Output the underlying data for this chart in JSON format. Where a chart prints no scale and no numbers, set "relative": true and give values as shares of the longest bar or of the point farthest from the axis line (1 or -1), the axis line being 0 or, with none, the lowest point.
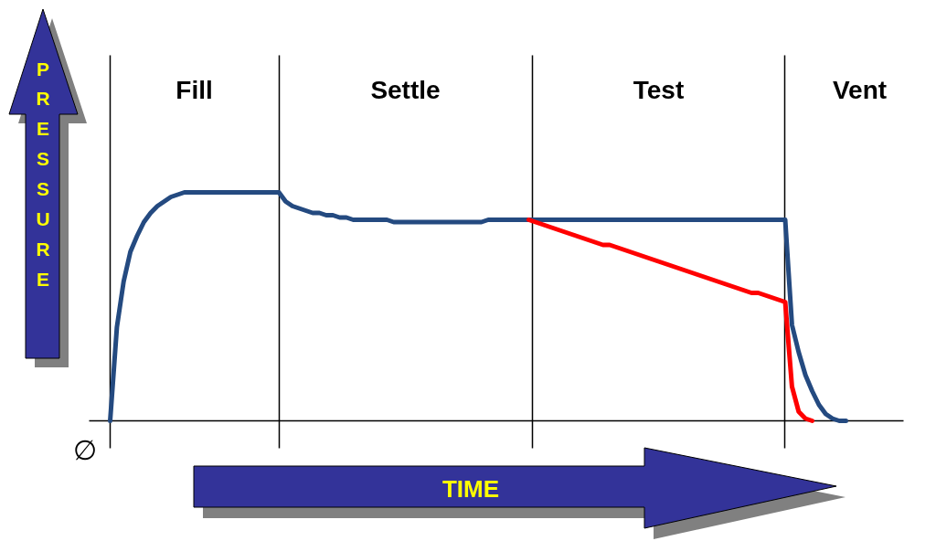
{
  "chart_data": {
    "type": "line",
    "relative": true,
    "xlabel": "TIME",
    "ylabel": "PRESSURE",
    "annotations": [
      "∅",
      "Fill",
      "Settle",
      "Test",
      "Vent"
    ],
    "grid": false,
    "marker": "none",
    "line_style": "solid",
    "categories": [
      null,
      null,
      null,
      null,
      null,
      null,
      null,
      null,
      null,
      null,
      null,
      null,
      null,
      null,
      null,
      null,
      null,
      null,
      null,
      null,
      null,
      null,
      null,
      null,
      null,
      null,
      null,
      null,
      null,
      null,
      null,
      null,
      null,
      null,
      null,
      null,
      null,
      null,
      null,
      null,
      null,
      null,
      null,
      null,
      null,
      null,
      null,
      null,
      null,
      null,
      null,
      null,
      null,
      null,
      null,
      null,
      null,
      null,
      null,
      null,
      null,
      null,
      null,
      null,
      null,
      null,
      null,
      null,
      null,
      null,
      null,
      null,
      null,
      null,
      null,
      null,
      null,
      null,
      null,
      null,
      null,
      null,
      null,
      null,
      null,
      null,
      null,
      null,
      null,
      null,
      null,
      null,
      null,
      null,
      null,
      null,
      null,
      null,
      null,
      null,
      null,
      null,
      null,
      null,
      null,
      null,
      null,
      null,
      null,
      null,
      null
    ],
    "series": [
      {
        "color": "#244a80",
        "values": [
          0,
          0.41,
          0.61,
          0.74,
          0.81,
          0.87,
          0.91,
          0.94,
          0.96,
          0.98,
          0.99,
          1,
          1,
          1,
          1,
          1,
          1,
          1,
          1,
          1,
          1,
          1,
          1,
          1,
          1,
          1,
          0.96,
          0.94,
          0.93,
          0.92,
          0.91,
          0.91,
          0.9,
          0.9,
          0.89,
          0.89,
          0.88,
          0.88,
          0.88,
          0.88,
          0.88,
          0.88,
          0.87,
          0.87,
          0.87,
          0.87,
          0.87,
          0.87,
          0.87,
          0.87,
          0.87,
          0.87,
          0.87,
          0.87,
          0.87,
          0.87,
          0.88,
          0.88,
          0.88,
          0.88,
          0.88,
          0.88,
          0.88,
          0.88,
          0.88,
          0.88,
          0.88,
          0.88,
          0.88,
          0.88,
          0.88,
          0.88,
          0.88,
          0.88,
          0.88,
          0.88,
          0.88,
          0.88,
          0.88,
          0.88,
          0.88,
          0.88,
          0.88,
          0.88,
          0.88,
          0.88,
          0.88,
          0.88,
          0.88,
          0.88,
          0.88,
          0.88,
          0.88,
          0.88,
          0.88,
          0.88,
          0.88,
          0.88,
          0.88,
          0.88,
          0.88,
          0.42,
          0.3,
          0.2,
          0.13,
          0.07,
          0.03,
          0.01,
          0,
          0,
          null
        ]
      },
      {
        "color": "#ff0000",
        "values": [
          null,
          null,
          null,
          null,
          null,
          null,
          null,
          null,
          null,
          null,
          null,
          null,
          null,
          null,
          null,
          null,
          null,
          null,
          null,
          null,
          null,
          null,
          null,
          null,
          null,
          null,
          null,
          null,
          null,
          null,
          null,
          null,
          null,
          null,
          null,
          null,
          null,
          null,
          null,
          null,
          null,
          null,
          null,
          null,
          null,
          null,
          null,
          null,
          null,
          null,
          null,
          null,
          null,
          null,
          null,
          null,
          null,
          null,
          null,
          null,
          null,
          null,
          0.88,
          0.87,
          0.86,
          0.85,
          0.84,
          0.83,
          0.82,
          0.81,
          0.8,
          0.79,
          0.78,
          0.77,
          0.77,
          0.76,
          0.75,
          0.74,
          0.73,
          0.72,
          0.71,
          0.7,
          0.69,
          0.68,
          0.67,
          0.66,
          0.65,
          0.64,
          0.63,
          0.62,
          0.61,
          0.6,
          0.59,
          0.58,
          0.57,
          0.56,
          0.56,
          0.55,
          0.54,
          0.53,
          0.52,
          0.15,
          0.04,
          0.01,
          0,
          null,
          null,
          null,
          null,
          null,
          null
        ]
      }
    ]
  }
}
